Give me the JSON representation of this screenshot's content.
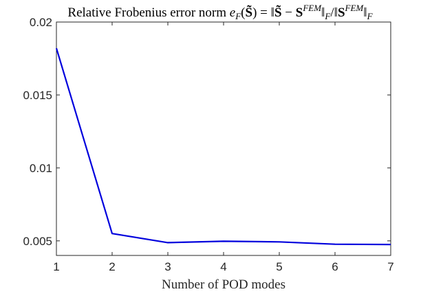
{
  "chart_data": {
    "type": "line",
    "title": "Relative Frobenius error norm e_F(S̃) = ‖S̃ − S^FEM‖_F / ‖S^FEM‖_F",
    "xlabel": "Number of POD modes",
    "ylabel": "",
    "xlim": [
      1,
      7
    ],
    "ylim": [
      0.004,
      0.02
    ],
    "x_ticks": [
      1,
      2,
      3,
      4,
      5,
      6,
      7
    ],
    "x_tick_labels": [
      "1",
      "2",
      "3",
      "4",
      "5",
      "6",
      "7"
    ],
    "y_ticks": [
      0.005,
      0.01,
      0.015,
      0.02
    ],
    "y_tick_labels": [
      "0.005",
      "0.01",
      "0.015",
      "0.02"
    ],
    "grid": false,
    "series": [
      {
        "color": "#0000dd",
        "x": [
          1,
          2,
          3,
          4,
          5,
          6,
          7
        ],
        "y": [
          0.0182,
          0.0055,
          0.00488,
          0.00497,
          0.00493,
          0.00477,
          0.00475
        ]
      }
    ]
  }
}
